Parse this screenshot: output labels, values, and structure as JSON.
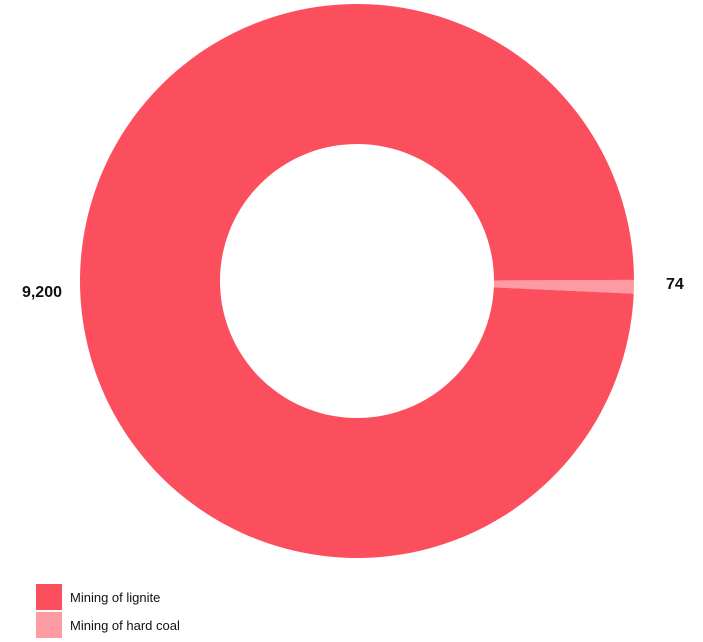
{
  "chart_data": {
    "type": "pie",
    "variant": "donut",
    "title": "",
    "categories": [
      "Mining of lignite",
      "Mining of hard coal"
    ],
    "values": [
      9200,
      74
    ],
    "data_labels": [
      "9,200",
      "74"
    ],
    "colors": [
      "#fc4f5e",
      "#fd9aa2"
    ],
    "legend": {
      "placement": "bottom-left",
      "entries": [
        "Mining of lignite",
        "Mining of hard coal"
      ]
    }
  }
}
